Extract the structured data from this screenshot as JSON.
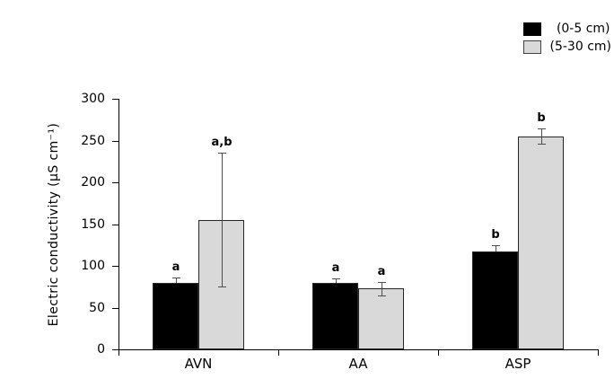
{
  "chart_data": {
    "type": "bar",
    "title": "",
    "xlabel": "",
    "ylabel": "Electric conductivity (μS cm⁻¹)",
    "categories": [
      "AVN",
      "AA",
      "ASP"
    ],
    "series": [
      {
        "name": "(0-5 cm)",
        "color": "#000000",
        "values": [
          80,
          80,
          117
        ],
        "errors": [
          6,
          5,
          8
        ],
        "sig_labels": [
          "a",
          "a",
          "b"
        ]
      },
      {
        "name": "(5-30 cm)",
        "color": "#d9d9d9",
        "values": [
          155,
          73,
          255
        ],
        "errors": [
          80,
          8,
          9
        ],
        "sig_labels": [
          "a,b",
          "a",
          "b"
        ]
      }
    ],
    "ylim": [
      0,
      300
    ],
    "yticks": [
      0,
      50,
      100,
      150,
      200,
      250,
      300
    ],
    "grid": false,
    "legend_position": "top-right",
    "colors": {
      "axis": "#000000",
      "error_bar": "#4f4f4f",
      "bar_border": "#262626",
      "background": "#ffffff"
    }
  }
}
